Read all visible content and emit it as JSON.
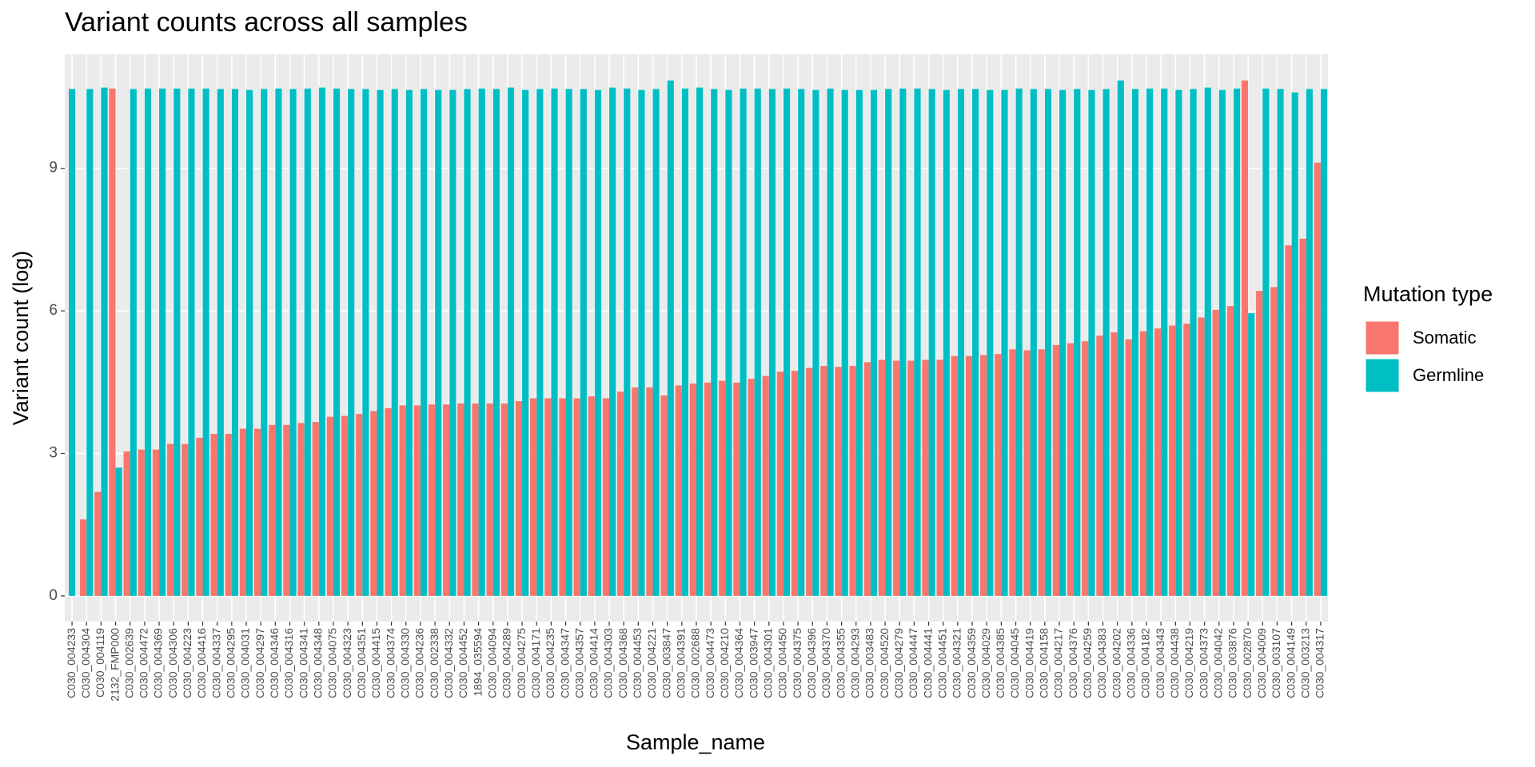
{
  "chart_data": {
    "type": "bar",
    "title": "Variant counts across all samples",
    "x_label": "Sample_name",
    "y_label": "Variant count (log)",
    "legend_title": "Mutation type",
    "legend_position": "right",
    "grid": true,
    "ylim": [
      -0.54,
      11.4
    ],
    "yticks": [
      0,
      3,
      6,
      9
    ],
    "categories": [
      "C030_004233",
      "C030_004304",
      "C030_004119",
      "2132_FMP000",
      "C030_002639",
      "C030_004472",
      "C030_004369",
      "C030_004306",
      "C030_004223",
      "C030_004416",
      "C030_004337",
      "C030_004295",
      "C030_004031",
      "C030_004297",
      "C030_004346",
      "C030_004316",
      "C030_004341",
      "C030_004348",
      "C030_004075",
      "C030_004323",
      "C030_004351",
      "C030_004415",
      "C030_004374",
      "C030_004330",
      "C030_004236",
      "C030_002338",
      "C030_004332",
      "C030_004452",
      "1894_035594",
      "C030_004094",
      "C030_004289",
      "C030_004275",
      "C030_004171",
      "C030_004235",
      "C030_004347",
      "C030_004357",
      "C030_004414",
      "C030_004303",
      "C030_004368",
      "C030_004453",
      "C030_004221",
      "C030_003847",
      "C030_004391",
      "C030_002688",
      "C030_004473",
      "C030_004210",
      "C030_004364",
      "C030_003947",
      "C030_004301",
      "C030_004450",
      "C030_004375",
      "C030_004396",
      "C030_004370",
      "C030_004355",
      "C030_004293",
      "C030_003483",
      "C030_004520",
      "C030_004279",
      "C030_004447",
      "C030_004441",
      "C030_004451",
      "C030_004321",
      "C030_004359",
      "C030_004029",
      "C030_004385",
      "C030_004045",
      "C030_004419",
      "C030_004158",
      "C030_004217",
      "C030_004376",
      "C030_004259",
      "C030_004383",
      "C030_004202",
      "C030_004336",
      "C030_004182",
      "C030_004343",
      "C030_004438",
      "C030_004219",
      "C030_004373",
      "C030_004042",
      "C030_003876",
      "C030_002870",
      "C030_004009",
      "C030_003107",
      "C030_004149",
      "C030_003213",
      "C030_004317"
    ],
    "series": [
      {
        "name": "Somatic",
        "color": "#F8766D",
        "values": [
          null,
          1.61,
          2.19,
          10.68,
          3.04,
          3.08,
          3.08,
          3.2,
          3.2,
          3.33,
          3.41,
          3.41,
          3.52,
          3.52,
          3.6,
          3.6,
          3.64,
          3.66,
          3.77,
          3.79,
          3.83,
          3.89,
          3.95,
          4.01,
          4.01,
          4.03,
          4.03,
          4.05,
          4.05,
          4.05,
          4.05,
          4.1,
          4.16,
          4.16,
          4.16,
          4.16,
          4.2,
          4.16,
          4.3,
          4.39,
          4.39,
          4.22,
          4.43,
          4.47,
          4.49,
          4.53,
          4.49,
          4.57,
          4.63,
          4.72,
          4.74,
          4.8,
          4.84,
          4.82,
          4.84,
          4.92,
          4.97,
          4.95,
          4.95,
          4.97,
          4.97,
          5.05,
          5.05,
          5.07,
          5.09,
          5.19,
          5.17,
          5.19,
          5.28,
          5.32,
          5.36,
          5.48,
          5.55,
          5.4,
          5.57,
          5.63,
          5.69,
          5.73,
          5.86,
          6.02,
          6.1,
          10.85,
          6.42,
          6.5,
          7.38,
          7.52,
          9.12
        ]
      },
      {
        "name": "Germline",
        "color": "#00BFC4",
        "values": [
          10.67,
          10.67,
          10.7,
          2.7,
          10.67,
          10.68,
          10.68,
          10.68,
          10.68,
          10.68,
          10.67,
          10.67,
          10.65,
          10.67,
          10.68,
          10.67,
          10.68,
          10.7,
          10.68,
          10.67,
          10.67,
          10.65,
          10.67,
          10.65,
          10.67,
          10.65,
          10.65,
          10.67,
          10.68,
          10.67,
          10.7,
          10.65,
          10.67,
          10.68,
          10.67,
          10.67,
          10.65,
          10.7,
          10.68,
          10.65,
          10.67,
          10.85,
          10.68,
          10.7,
          10.67,
          10.65,
          10.68,
          10.68,
          10.67,
          10.68,
          10.67,
          10.65,
          10.68,
          10.65,
          10.65,
          10.65,
          10.67,
          10.68,
          10.68,
          10.67,
          10.65,
          10.67,
          10.67,
          10.65,
          10.65,
          10.68,
          10.67,
          10.67,
          10.65,
          10.67,
          10.65,
          10.67,
          10.85,
          10.67,
          10.68,
          10.68,
          10.65,
          10.67,
          10.7,
          10.65,
          10.68,
          5.95,
          10.68,
          10.67,
          10.6,
          10.67,
          10.67
        ]
      }
    ]
  }
}
